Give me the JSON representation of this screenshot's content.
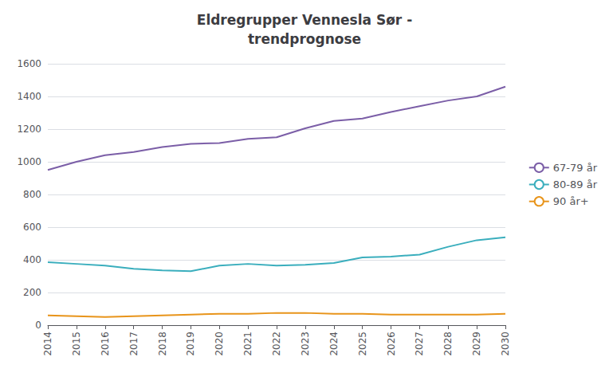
{
  "chart_data": {
    "type": "line",
    "title": "Eldregrupper Vennesla Sør -\ntrendprognose",
    "categories": [
      "2014",
      "2015",
      "2016",
      "2017",
      "2018",
      "2019",
      "2020",
      "2021",
      "2022",
      "2023",
      "2024",
      "2025",
      "2026",
      "2027",
      "2028",
      "2029",
      "2030"
    ],
    "series": [
      {
        "name": "67-79 år",
        "color": "#7B5EA7",
        "values": [
          950,
          1000,
          1040,
          1060,
          1090,
          1110,
          1115,
          1140,
          1150,
          1205,
          1250,
          1265,
          1305,
          1340,
          1375,
          1400,
          1460
        ]
      },
      {
        "name": "80-89 år",
        "color": "#3AAEBD",
        "values": [
          385,
          375,
          365,
          345,
          335,
          330,
          365,
          375,
          365,
          370,
          380,
          415,
          420,
          432,
          480,
          520,
          538
        ]
      },
      {
        "name": "90 år+",
        "color": "#E8941A",
        "values": [
          60,
          55,
          50,
          55,
          60,
          65,
          70,
          70,
          75,
          75,
          70,
          70,
          65,
          65,
          65,
          65,
          70
        ]
      }
    ],
    "ylim": [
      0,
      1600
    ],
    "yticks": [
      0,
      200,
      400,
      600,
      800,
      1000,
      1200,
      1400,
      1600
    ],
    "grid": true,
    "legend": "right"
  }
}
